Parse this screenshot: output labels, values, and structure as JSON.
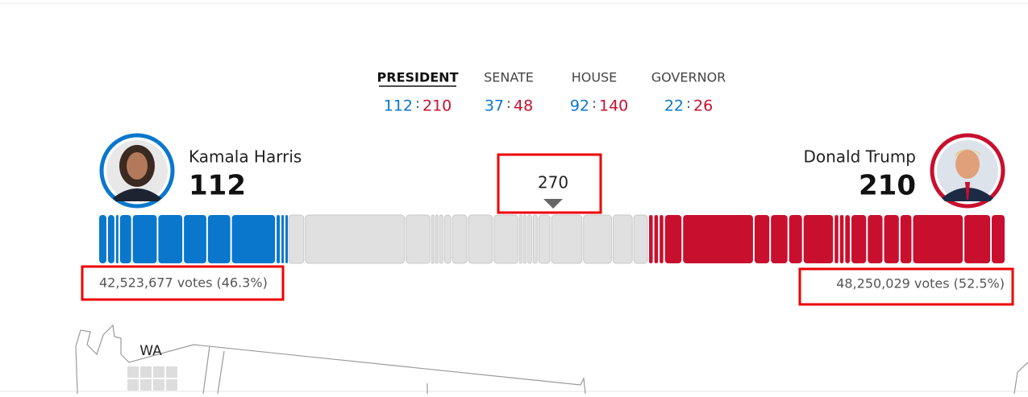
{
  "scoreboard": {
    "separator": ":",
    "tabs": [
      {
        "label": "PRESIDENT",
        "dem": "112",
        "rep": "210"
      },
      {
        "label": "SENATE",
        "dem": "37",
        "rep": "48"
      },
      {
        "label": "HOUSE",
        "dem": "92",
        "rep": "140"
      },
      {
        "label": "GOVERNOR",
        "dem": "22",
        "rep": "26"
      }
    ]
  },
  "candidates": {
    "dem": {
      "name": "Kamala Harris",
      "electoral_votes": "112",
      "popular_vote": "42,523,677 votes (46.3%)"
    },
    "rep": {
      "name": "Donald Trump",
      "electoral_votes": "210",
      "popular_vote": "48,250,029 votes (52.5%)"
    }
  },
  "threshold": "270",
  "map": {
    "state_label": "WA"
  }
}
